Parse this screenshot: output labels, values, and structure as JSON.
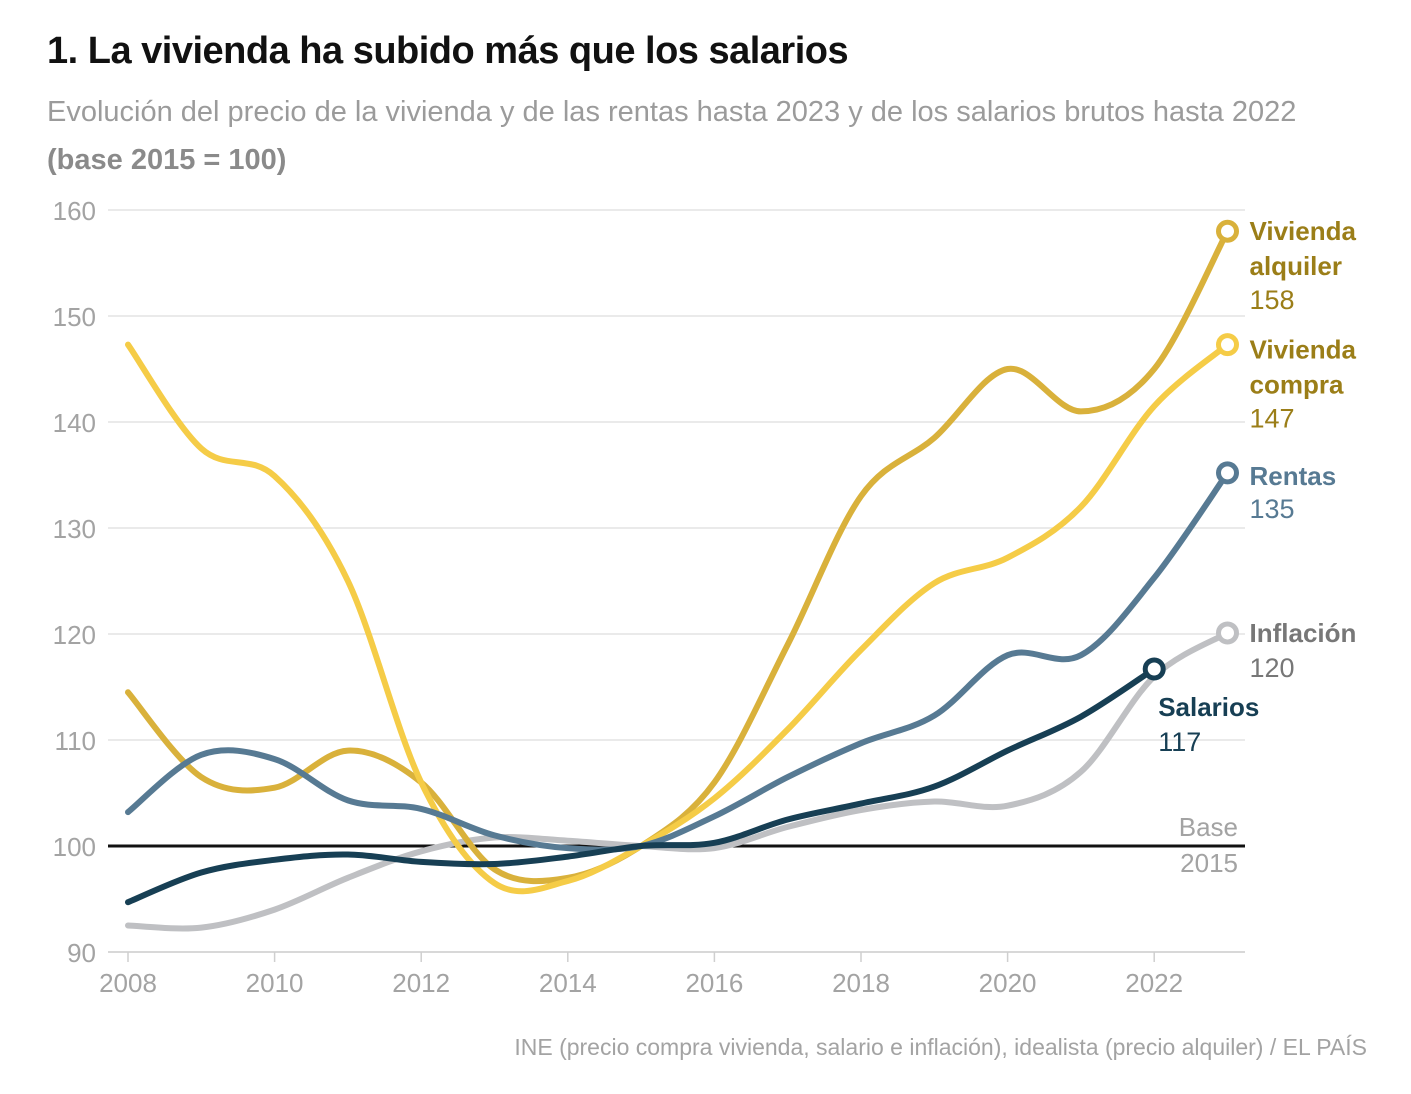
{
  "header": {
    "title": "1. La vivienda ha subido más que los salarios",
    "subtitle": "Evolución del precio de la vivienda y de las rentas hasta 2023 y de los salarios brutos hasta 2022 ",
    "subtitle_bold": "(base 2015 = 100)"
  },
  "footer": {
    "source": "INE (precio compra vivienda, salario e inflación), idealista (precio alquiler) / EL PAÍS"
  },
  "chart_data": {
    "type": "line",
    "title": "1. La vivienda ha subido más que los salarios",
    "xlim": [
      2008,
      2023.4
    ],
    "ylim": [
      90,
      160
    ],
    "x_ticks": [
      2008,
      2010,
      2012,
      2014,
      2016,
      2018,
      2020,
      2022
    ],
    "y_ticks": [
      90,
      100,
      110,
      120,
      130,
      140,
      150,
      160
    ],
    "grid": true,
    "baseline": {
      "value": 100,
      "label_line1": "Base",
      "label_line2": "2015"
    },
    "series": [
      {
        "name_lines": [
          "Inflación"
        ],
        "end_label": "120",
        "color": "#bfc0c3",
        "label_color": "#777777",
        "x": [
          2008,
          2009,
          2010,
          2011,
          2012,
          2013,
          2014,
          2015,
          2016,
          2017,
          2018,
          2019,
          2020,
          2021,
          2022,
          2023
        ],
        "y": [
          92.5,
          92.3,
          94.0,
          97.0,
          99.5,
          100.8,
          100.5,
          100.0,
          99.8,
          101.8,
          103.4,
          104.2,
          103.8,
          107.0,
          116.0,
          120.1
        ]
      },
      {
        "name_lines": [
          "Vivienda",
          "alquiler"
        ],
        "end_label": "158",
        "color": "#d9b13b",
        "label_color": "#9b7e18",
        "x": [
          2008,
          2009,
          2010,
          2011,
          2012,
          2013,
          2014,
          2015,
          2016,
          2017,
          2018,
          2019,
          2020,
          2021,
          2022,
          2023
        ],
        "y": [
          114.5,
          106.5,
          105.5,
          109.0,
          106.0,
          97.8,
          97.0,
          100.0,
          106.0,
          119.0,
          133.0,
          138.5,
          145.0,
          141.0,
          145.0,
          158.0
        ]
      },
      {
        "name_lines": [
          "Vivienda",
          "compra"
        ],
        "end_label": "147",
        "color": "#f5cc47",
        "label_color": "#9b7e18",
        "x": [
          2008,
          2009,
          2010,
          2011,
          2012,
          2013,
          2014,
          2015,
          2016,
          2017,
          2018,
          2019,
          2020,
          2021,
          2022,
          2023
        ],
        "y": [
          147.3,
          137.5,
          134.9,
          125.0,
          106.0,
          96.5,
          96.7,
          100.0,
          104.5,
          111.0,
          118.5,
          124.8,
          127.2,
          132.0,
          141.5,
          147.3
        ]
      },
      {
        "name_lines": [
          "Rentas"
        ],
        "end_label": "135",
        "color": "#577a93",
        "label_color": "#577a93",
        "x": [
          2008,
          2009,
          2010,
          2011,
          2012,
          2013,
          2014,
          2015,
          2016,
          2017,
          2018,
          2019,
          2020,
          2021,
          2022,
          2023
        ],
        "y": [
          103.2,
          108.6,
          108.2,
          104.3,
          103.5,
          101.0,
          99.8,
          100.0,
          102.8,
          106.5,
          109.7,
          112.3,
          118.0,
          118.0,
          125.3,
          135.2
        ]
      },
      {
        "name_lines": [
          "Salarios"
        ],
        "end_label": "117",
        "color": "#173f54",
        "label_color": "#173f54",
        "x": [
          2008,
          2009,
          2010,
          2011,
          2012,
          2013,
          2014,
          2015,
          2016,
          2017,
          2018,
          2019,
          2020,
          2021,
          2022
        ],
        "y": [
          94.7,
          97.5,
          98.7,
          99.2,
          98.5,
          98.3,
          99.0,
          100.0,
          100.3,
          102.5,
          104.0,
          105.6,
          109.0,
          112.2,
          116.7
        ]
      }
    ]
  }
}
